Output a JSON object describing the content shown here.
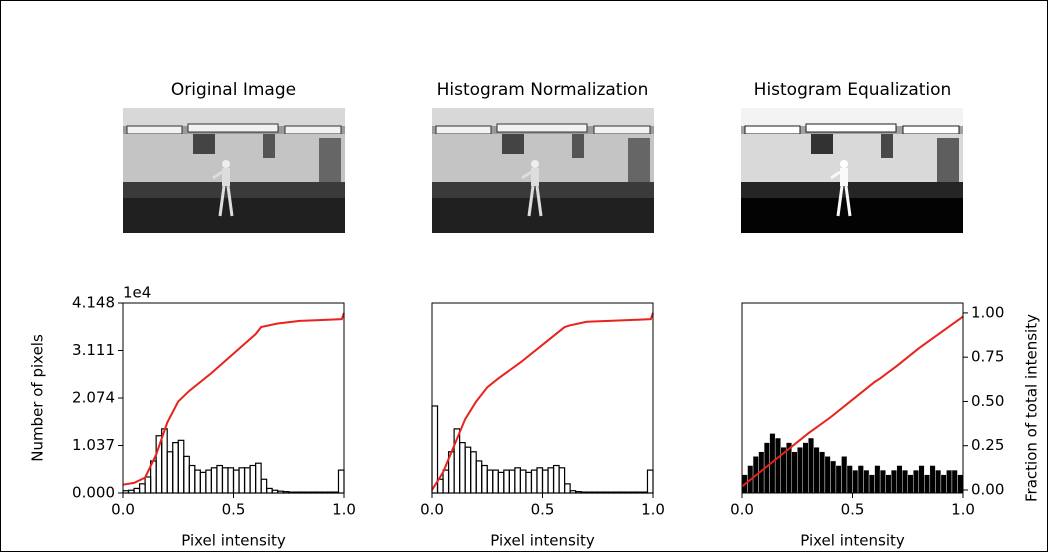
{
  "chart_data": [
    {
      "type": "histogram",
      "title": "Original Image",
      "xlabel": "Pixel intensity",
      "ylabel": "Number of pixels",
      "y_offset_label": "1e4",
      "bins": [
        0,
        0.025,
        0.05,
        0.075,
        0.1,
        0.125,
        0.15,
        0.175,
        0.2,
        0.225,
        0.25,
        0.275,
        0.3,
        0.325,
        0.35,
        0.375,
        0.4,
        0.425,
        0.45,
        0.475,
        0.5,
        0.525,
        0.55,
        0.575,
        0.6,
        0.625,
        0.65,
        0.675,
        0.7,
        0.725,
        0.75,
        0.775,
        0.8,
        0.825,
        0.85,
        0.875,
        0.9,
        0.925,
        0.95,
        0.975,
        1
      ],
      "values": [
        0.05,
        0.06,
        0.1,
        0.2,
        0.35,
        0.7,
        1.25,
        1.4,
        0.9,
        1.1,
        1.15,
        0.8,
        0.6,
        0.5,
        0.45,
        0.5,
        0.55,
        0.6,
        0.55,
        0.55,
        0.5,
        0.55,
        0.55,
        0.6,
        0.65,
        0.3,
        0.1,
        0.06,
        0.04,
        0.03,
        0.02,
        0.02,
        0.02,
        0.02,
        0.02,
        0.02,
        0.02,
        0.02,
        0.02,
        0.5
      ],
      "color": "#000000",
      "filled": false,
      "line": {
        "x": [
          0,
          0.05,
          0.1,
          0.15,
          0.2,
          0.25,
          0.3,
          0.4,
          0.5,
          0.6,
          0.625,
          0.7,
          0.8,
          0.9,
          0.99,
          1.0
        ],
        "values": [
          0.03,
          0.04,
          0.07,
          0.2,
          0.38,
          0.5,
          0.56,
          0.66,
          0.77,
          0.88,
          0.92,
          0.94,
          0.955,
          0.96,
          0.965,
          1.0
        ],
        "color": "#e8221c",
        "axis": "y2"
      },
      "xlim": [
        0,
        1
      ],
      "xticks": [
        {
          "value": 0,
          "label": "0.0"
        },
        0.5,
        {
          "value": 1,
          "label": "1.0"
        }
      ],
      "ylim": [
        0,
        4.148
      ],
      "yticks": [
        {
          "value": 0,
          "label": "0.000"
        },
        1.037,
        2.074,
        3.111,
        4.148
      ],
      "y2lim": [
        -0.017,
        1.056
      ]
    },
    {
      "type": "histogram",
      "title": "Histogram Normalization",
      "xlabel": "Pixel intensity",
      "bins": [
        0,
        0.025,
        0.05,
        0.075,
        0.1,
        0.125,
        0.15,
        0.175,
        0.2,
        0.225,
        0.25,
        0.275,
        0.3,
        0.325,
        0.35,
        0.375,
        0.4,
        0.425,
        0.45,
        0.475,
        0.5,
        0.525,
        0.55,
        0.575,
        0.6,
        0.625,
        0.65,
        0.675,
        0.7,
        0.725,
        0.75,
        0.775,
        0.8,
        0.825,
        0.85,
        0.875,
        0.9,
        0.925,
        0.95,
        0.975,
        1
      ],
      "values": [
        1.9,
        0.3,
        0.5,
        0.9,
        1.4,
        1.1,
        1.0,
        0.9,
        0.7,
        0.6,
        0.5,
        0.5,
        0.45,
        0.5,
        0.5,
        0.55,
        0.5,
        0.45,
        0.5,
        0.55,
        0.5,
        0.55,
        0.6,
        0.55,
        0.2,
        0.05,
        0.03,
        0.02,
        0.02,
        0.02,
        0.02,
        0.02,
        0.02,
        0.02,
        0.02,
        0.02,
        0.02,
        0.02,
        0.02,
        0.5
      ],
      "color": "#000000",
      "filled": false,
      "line": {
        "x": [
          0,
          0.05,
          0.1,
          0.15,
          0.2,
          0.25,
          0.3,
          0.4,
          0.5,
          0.6,
          0.625,
          0.7,
          0.8,
          0.9,
          0.99,
          1.0
        ],
        "values": [
          0.0,
          0.1,
          0.25,
          0.4,
          0.5,
          0.58,
          0.63,
          0.72,
          0.82,
          0.92,
          0.93,
          0.95,
          0.955,
          0.96,
          0.965,
          1.0
        ],
        "color": "#e8221c",
        "axis": "y2"
      },
      "xlim": [
        0,
        1
      ],
      "xticks": [
        {
          "value": 0,
          "label": "0.0"
        },
        0.5,
        {
          "value": 1,
          "label": "1.0"
        }
      ],
      "ylim": [
        0,
        4.148
      ],
      "y2lim": [
        -0.017,
        1.056
      ]
    },
    {
      "type": "histogram",
      "title": "Histogram Equalization",
      "xlabel": "Pixel intensity",
      "y2label": "Fraction of total intensity",
      "bins": [
        0,
        0.025,
        0.05,
        0.075,
        0.1,
        0.125,
        0.15,
        0.175,
        0.2,
        0.225,
        0.25,
        0.275,
        0.3,
        0.325,
        0.35,
        0.375,
        0.4,
        0.425,
        0.45,
        0.475,
        0.5,
        0.525,
        0.55,
        0.575,
        0.6,
        0.625,
        0.65,
        0.675,
        0.7,
        0.725,
        0.75,
        0.775,
        0.8,
        0.825,
        0.85,
        0.875,
        0.9,
        0.925,
        0.95,
        0.975,
        1
      ],
      "values": [
        0.4,
        0.6,
        0.8,
        0.9,
        1.1,
        1.3,
        1.2,
        1.0,
        1.1,
        0.9,
        1.0,
        1.1,
        1.2,
        1.0,
        0.9,
        0.8,
        0.7,
        0.6,
        0.8,
        0.6,
        0.5,
        0.6,
        0.5,
        0.4,
        0.6,
        0.5,
        0.4,
        0.5,
        0.6,
        0.5,
        0.4,
        0.5,
        0.6,
        0.4,
        0.6,
        0.5,
        0.4,
        0.5,
        0.5,
        0.4
      ],
      "color": "#000000",
      "filled": true,
      "line": {
        "x": [
          0,
          0.05,
          0.1,
          0.15,
          0.2,
          0.25,
          0.3,
          0.4,
          0.5,
          0.6,
          0.625,
          0.7,
          0.8,
          0.9,
          0.99,
          1.0
        ],
        "values": [
          0.02,
          0.07,
          0.12,
          0.17,
          0.22,
          0.27,
          0.32,
          0.41,
          0.51,
          0.61,
          0.63,
          0.7,
          0.8,
          0.89,
          0.97,
          0.98
        ],
        "color": "#e8221c",
        "axis": "y2"
      },
      "xlim": [
        0,
        1
      ],
      "xticks": [
        {
          "value": 0,
          "label": "0.0"
        },
        0.5,
        {
          "value": 1,
          "label": "1.0"
        }
      ],
      "ylim": [
        0,
        4.148
      ],
      "y2lim": [
        -0.017,
        1.056
      ],
      "y2ticks": [
        {
          "value": 0,
          "label": "0.00"
        },
        0.25,
        {
          "value": 0.5,
          "label": "0.50"
        },
        0.75,
        {
          "value": 1,
          "label": "1.00"
        }
      ]
    }
  ]
}
